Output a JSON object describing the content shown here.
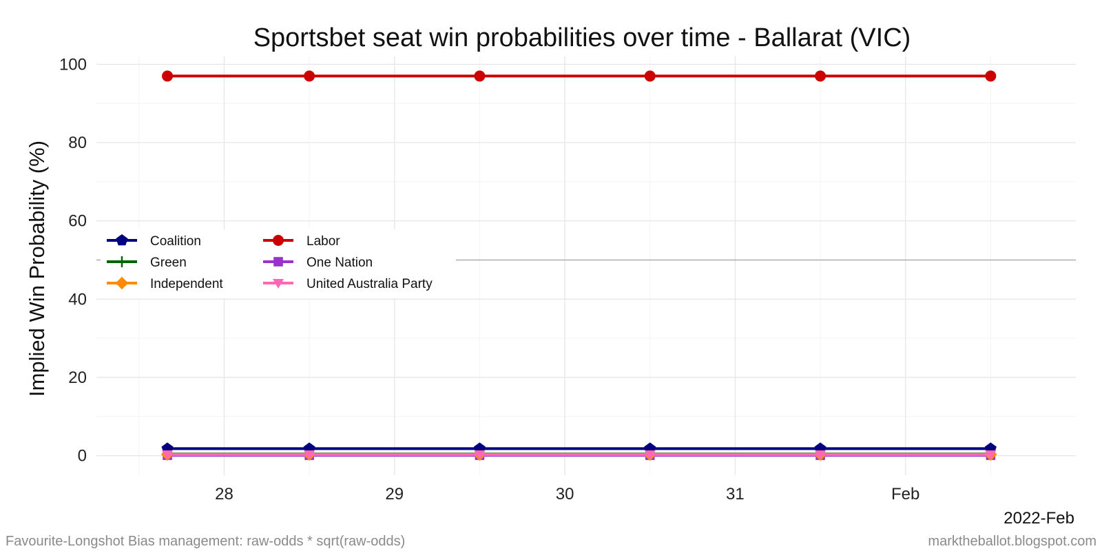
{
  "chart_data": {
    "type": "line",
    "title": "Sportsbet seat win probabilities over time - Ballarat (VIC)",
    "xlabel": "",
    "ylabel": "Implied Win Probability (%)",
    "x": [
      "2022-01-27 16:00",
      "2022-01-28 12:00",
      "2022-01-29 12:00",
      "2022-01-30 12:00",
      "2022-01-31 12:00",
      "2022-02-01 12:00"
    ],
    "x_ticks": [
      {
        "date": "2022-01-28",
        "label": "28"
      },
      {
        "date": "2022-01-29",
        "label": "29"
      },
      {
        "date": "2022-01-30",
        "label": "30"
      },
      {
        "date": "2022-01-31",
        "label": "31"
      },
      {
        "date": "2022-02-01",
        "label": "Feb"
      }
    ],
    "xlim": [
      "2022-01-27 06:00",
      "2022-02-02 00:00"
    ],
    "x_corner_label": "2022-Feb",
    "ylim": [
      -5,
      102
    ],
    "y_ticks": [
      0,
      20,
      40,
      60,
      80,
      100
    ],
    "reference_line_y": 50,
    "grid": true,
    "legend": "left-center",
    "series": [
      {
        "name": "Coalition",
        "color": "#000080",
        "marker": "pentagon",
        "values": [
          1.8,
          1.8,
          1.8,
          1.8,
          1.8,
          1.8
        ]
      },
      {
        "name": "Labor",
        "color": "#CC0000",
        "marker": "circle",
        "values": [
          97.0,
          97.0,
          97.0,
          97.0,
          97.0,
          97.0
        ]
      },
      {
        "name": "Green",
        "color": "#006400",
        "marker": "plus",
        "values": [
          0.4,
          0.4,
          0.4,
          0.4,
          0.4,
          0.4
        ]
      },
      {
        "name": "One Nation",
        "color": "#9932CC",
        "marker": "square",
        "values": [
          0.1,
          0.1,
          0.1,
          0.1,
          0.1,
          0.1
        ]
      },
      {
        "name": "Independent",
        "color": "#FF8C00",
        "marker": "diamond",
        "values": [
          0.3,
          0.3,
          0.3,
          0.3,
          0.3,
          0.3
        ]
      },
      {
        "name": "United Australia Party",
        "color": "#FF69B4",
        "marker": "triangle-down",
        "values": [
          0.3,
          0.3,
          0.3,
          0.3,
          0.3,
          0.3
        ]
      }
    ]
  },
  "caption_left": "Favourite-Longshot Bias management: raw-odds * sqrt(raw-odds)",
  "caption_right": "marktheballot.blogspot.com"
}
